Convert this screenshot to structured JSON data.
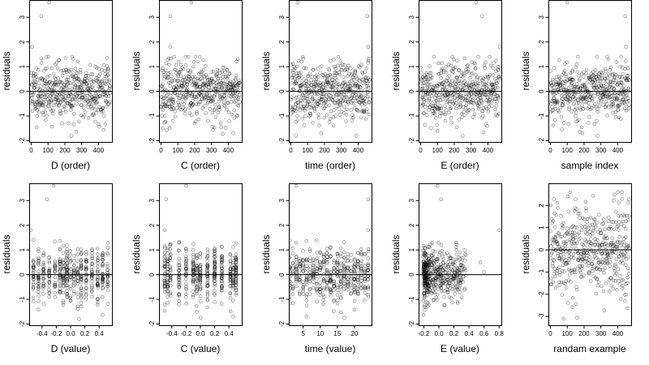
{
  "figure": {
    "background": "#ffffff",
    "point_color": "#000000",
    "point_opacity": 0.55
  },
  "chart_data": [
    {
      "type": "scatter",
      "xlabel": "D (order)",
      "ylabel": "residuals",
      "xlim": [
        -12,
        480
      ],
      "ylim": [
        -2.05,
        3.7
      ],
      "xticks": [
        0,
        100,
        200,
        300,
        400
      ],
      "yticks": [
        -2,
        -1,
        0,
        1,
        2,
        3
      ],
      "hline": 0,
      "pattern": "order",
      "n_points": 470,
      "outliers": [
        [
          107,
          3.6
        ],
        [
          60,
          3.05
        ],
        [
          6,
          1.8
        ],
        [
          205,
          1.35
        ],
        [
          240,
          -1.8
        ]
      ],
      "seed": 11
    },
    {
      "type": "scatter",
      "xlabel": "C (order)",
      "ylabel": "residuals",
      "xlim": [
        -12,
        480
      ],
      "ylim": [
        -2.05,
        3.7
      ],
      "xticks": [
        0,
        100,
        200,
        300,
        400
      ],
      "yticks": [
        -2,
        -1,
        0,
        1,
        2,
        3
      ],
      "hline": 0,
      "pattern": "order",
      "n_points": 470,
      "outliers": [
        [
          180,
          3.6
        ],
        [
          55,
          3.05
        ],
        [
          55,
          1.8
        ],
        [
          10,
          -1.5
        ],
        [
          430,
          -1.7
        ]
      ],
      "seed": 23
    },
    {
      "type": "scatter",
      "xlabel": "time (order)",
      "ylabel": "residuals",
      "xlim": [
        -12,
        480
      ],
      "ylim": [
        -2.05,
        3.7
      ],
      "xticks": [
        0,
        100,
        200,
        300,
        400
      ],
      "yticks": [
        -2,
        -1,
        0,
        1,
        2,
        3
      ],
      "hline": 0,
      "pattern": "order",
      "n_points": 470,
      "outliers": [
        [
          40,
          3.6
        ],
        [
          455,
          3.05
        ],
        [
          460,
          1.8
        ],
        [
          180,
          -1.7
        ],
        [
          30,
          -1.8
        ]
      ],
      "seed": 37
    },
    {
      "type": "scatter",
      "xlabel": "E (order)",
      "ylabel": "residuals",
      "xlim": [
        -12,
        480
      ],
      "ylim": [
        -2.05,
        3.7
      ],
      "xticks": [
        0,
        100,
        200,
        300,
        400
      ],
      "yticks": [
        -2,
        -1,
        0,
        1,
        2,
        3
      ],
      "hline": 0,
      "pattern": "order",
      "n_points": 470,
      "outliers": [
        [
          330,
          3.6
        ],
        [
          365,
          3.05
        ],
        [
          470,
          1.8
        ],
        [
          100,
          -1.6
        ],
        [
          250,
          -1.8
        ]
      ],
      "seed": 41
    },
    {
      "type": "scatter",
      "xlabel": "sample index",
      "ylabel": "residuals",
      "xlim": [
        -12,
        480
      ],
      "ylim": [
        -2.05,
        3.7
      ],
      "xticks": [
        0,
        100,
        200,
        300,
        400
      ],
      "yticks": [
        -2,
        -1,
        0,
        1,
        2,
        3
      ],
      "hline": 0,
      "pattern": "order",
      "n_points": 470,
      "outliers": [
        [
          100,
          3.6
        ],
        [
          445,
          3.05
        ],
        [
          450,
          1.8
        ],
        [
          190,
          -1.7
        ],
        [
          280,
          -1.8
        ]
      ],
      "seed": 53
    },
    {
      "type": "scatter",
      "xlabel": "D (value)",
      "ylabel": "residuals",
      "xlim": [
        -0.58,
        0.58
      ],
      "ylim": [
        -2.05,
        3.7
      ],
      "xticks": [
        -0.4,
        -0.2,
        0.0,
        0.2,
        0.4
      ],
      "xticklabels": [
        "-0.4",
        "-0.2",
        "0.0",
        "0.2",
        "0.4"
      ],
      "yticks": [
        -2,
        -1,
        0,
        1,
        2,
        3
      ],
      "hline": 0,
      "pattern": "columns",
      "columns": [
        -0.52,
        -0.45,
        -0.38,
        -0.3,
        -0.22,
        -0.15,
        -0.1,
        -0.05,
        0.0,
        0.05,
        0.1,
        0.15,
        0.22,
        0.3,
        0.38,
        0.45,
        0.52
      ],
      "n_points": 470,
      "outliers": [
        [
          -0.24,
          3.6
        ],
        [
          -0.33,
          3.05
        ],
        [
          -0.56,
          1.8
        ],
        [
          0.12,
          -1.8
        ]
      ],
      "seed": 61
    },
    {
      "type": "scatter",
      "xlabel": "C (value)",
      "ylabel": "residuals",
      "xlim": [
        -0.58,
        0.58
      ],
      "ylim": [
        -2.05,
        3.7
      ],
      "xticks": [
        -0.4,
        -0.2,
        0.0,
        0.2,
        0.4
      ],
      "xticklabels": [
        "-0.4",
        "-0.2",
        "0.0",
        "0.2",
        "0.4"
      ],
      "yticks": [
        -2,
        -1,
        0,
        1,
        2,
        3
      ],
      "hline": 0,
      "pattern": "columns",
      "columns": [
        -0.5,
        -0.46,
        -0.42,
        -0.3,
        -0.2,
        -0.1,
        -0.05,
        0.0,
        0.1,
        0.2,
        0.3,
        0.42,
        0.46,
        0.5
      ],
      "n_points": 470,
      "outliers": [
        [
          -0.2,
          3.6
        ],
        [
          -0.48,
          3.05
        ],
        [
          -0.5,
          1.8
        ],
        [
          0.46,
          -1.7
        ]
      ],
      "seed": 71
    },
    {
      "type": "scatter",
      "xlabel": "time (value)",
      "ylabel": "residuals",
      "xlim": [
        0.8,
        25.0
      ],
      "ylim": [
        -2.05,
        3.7
      ],
      "xticks": [
        5,
        10,
        15,
        20
      ],
      "yticks": [
        -2,
        -1,
        0,
        1,
        2,
        3
      ],
      "hline": 0,
      "pattern": "columns",
      "columns": [
        1,
        2,
        3,
        4,
        5,
        6,
        7,
        8,
        9,
        10,
        11,
        12,
        13,
        14,
        15,
        16,
        17,
        18,
        19,
        20,
        21,
        22,
        23,
        24
      ],
      "n_points": 470,
      "outliers": [
        [
          3,
          3.6
        ],
        [
          24,
          3.05
        ],
        [
          24,
          1.8
        ],
        [
          6,
          -1.7
        ]
      ],
      "seed": 83
    },
    {
      "type": "scatter",
      "xlabel": "E (value)",
      "ylabel": "residuals",
      "xlim": [
        -0.27,
        0.83
      ],
      "ylim": [
        -2.05,
        3.7
      ],
      "xticks": [
        -0.2,
        0.0,
        0.2,
        0.4,
        0.6,
        0.8
      ],
      "xticklabels": [
        "-0.2",
        "0.0",
        "0.2",
        "0.4",
        "0.6",
        "0.8"
      ],
      "yticks": [
        -2,
        -1,
        0,
        1,
        2,
        3
      ],
      "hline": 0,
      "pattern": "skewed",
      "n_points": 470,
      "outliers": [
        [
          -0.02,
          3.6
        ],
        [
          0.03,
          3.05
        ],
        [
          0.8,
          1.8
        ],
        [
          0.55,
          0.5
        ],
        [
          0.6,
          0.1
        ]
      ],
      "seed": 97
    },
    {
      "type": "scatter",
      "xlabel": "randam example",
      "ylabel": "residuals",
      "xlim": [
        -12,
        480
      ],
      "ylim": [
        -3.4,
        3.0
      ],
      "xticks": [
        0,
        100,
        200,
        300,
        400
      ],
      "yticks": [
        -3,
        -2,
        -1,
        0,
        1,
        2
      ],
      "hline": 0,
      "pattern": "random",
      "n_points": 470,
      "outliers": [],
      "seed": 109
    }
  ]
}
